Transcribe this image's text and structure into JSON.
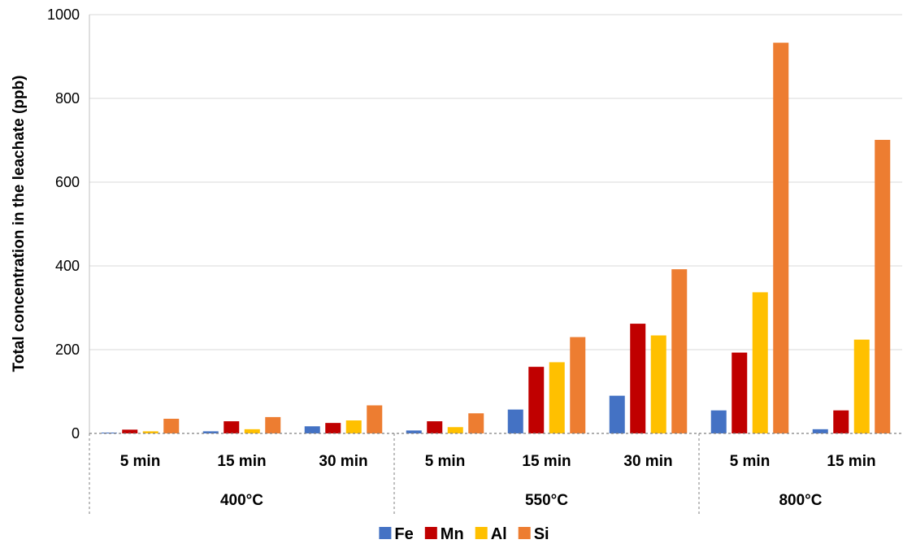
{
  "chart_data": {
    "type": "bar",
    "ylabel": "Total concentration in the leachate (ppb)",
    "ylim": [
      0,
      1000
    ],
    "yticks": [
      0,
      200,
      400,
      600,
      800,
      1000
    ],
    "grid": true,
    "legend_position": "bottom",
    "groups": [
      {
        "label": "400°C",
        "categories": [
          "5 min",
          "15 min",
          "30 min"
        ]
      },
      {
        "label": "550°C",
        "categories": [
          "5 min",
          "15 min",
          "30 min"
        ]
      },
      {
        "label": "800°C",
        "categories": [
          "5 min",
          "15 min"
        ]
      }
    ],
    "series": [
      {
        "name": "Fe",
        "color": "#4472C4",
        "values": [
          2,
          5,
          17,
          7,
          57,
          90,
          55,
          10
        ]
      },
      {
        "name": "Mn",
        "color": "#C00000",
        "values": [
          9,
          29,
          25,
          29,
          159,
          262,
          193,
          55
        ]
      },
      {
        "name": "Al",
        "color": "#FFC000",
        "values": [
          5,
          10,
          31,
          15,
          170,
          234,
          337,
          224
        ]
      },
      {
        "name": "Si",
        "color": "#ED7D31",
        "values": [
          35,
          39,
          67,
          48,
          230,
          392,
          933,
          701
        ]
      }
    ]
  }
}
